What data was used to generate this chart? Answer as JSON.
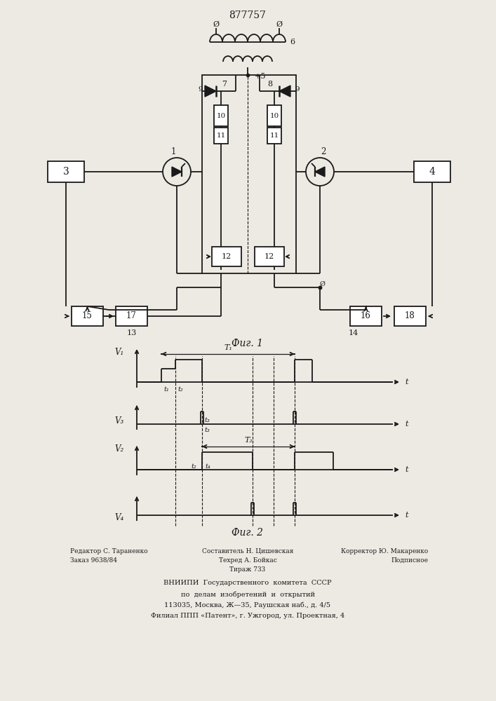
{
  "patent_number": "877757",
  "fig1_caption": "Фиг. 1",
  "fig2_caption": "Фиг. 2",
  "bg_color": "#ede9e3",
  "line_color": "#1a1a1a"
}
